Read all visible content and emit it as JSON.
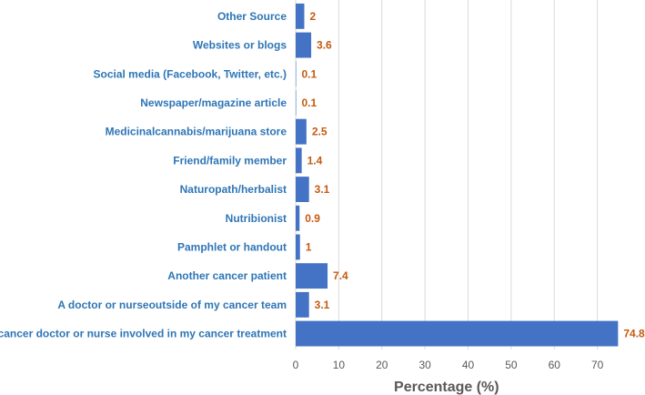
{
  "chart_data": {
    "type": "bar",
    "orientation": "horizontal",
    "categories": [
      "Other Source",
      "Websites or blogs",
      "Social media (Facebook, Twitter, etc.)",
      "Newspaper/magazine article",
      "Medicinalcannabis/marijuana store",
      "Friend/family member",
      "Naturopath/herbalist",
      "Nutribionist",
      "Pamphlet or handout",
      "Another cancer patient",
      "A doctor or nurseoutside of my cancer team",
      "A cancer doctor or nurse involved in my cancer treatment"
    ],
    "values": [
      2,
      3.6,
      0.1,
      0.1,
      2.5,
      1.4,
      3.1,
      0.9,
      1,
      7.4,
      3.1,
      74.8
    ],
    "value_labels": [
      "2",
      "3.6",
      "0.1",
      "0.1",
      "2.5",
      "1.4",
      "3.1",
      "0.9",
      "1",
      "7.4",
      "3.1",
      "74.8"
    ],
    "xlabel": "Percentage (%)",
    "ylabel": "",
    "title": "",
    "xlim": [
      0,
      80
    ],
    "xticks": [
      0,
      10,
      20,
      30,
      40,
      50,
      60,
      70
    ],
    "grid": "vertical",
    "legend": "none",
    "colors": {
      "bar": "#4472c4",
      "category_text": "#2e75b6",
      "value_text": "#c55a11",
      "grid": "#d9d9d9"
    }
  }
}
